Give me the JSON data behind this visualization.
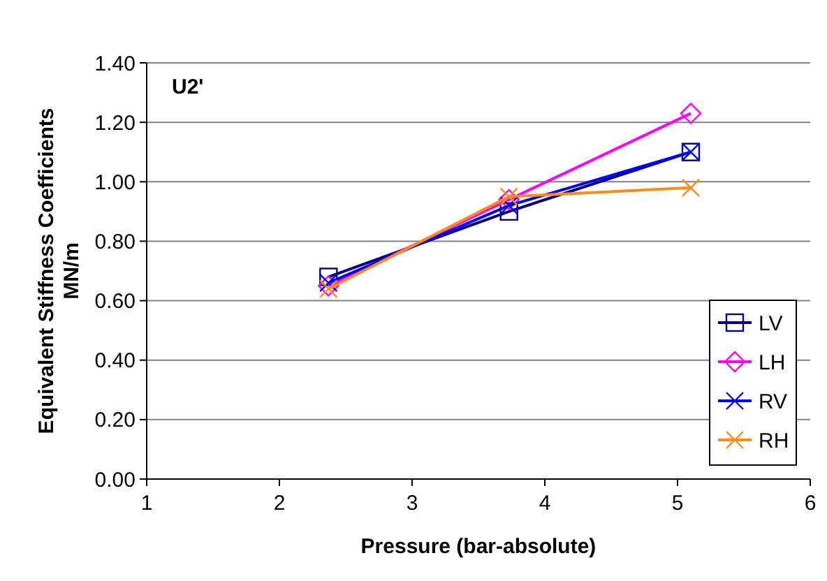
{
  "chart_data": {
    "type": "line",
    "xlabel": "Pressure (bar-absolute)",
    "ylabel": "Equivalent Stiffness Coefficients\nMN/m",
    "annotations": [
      "U2'"
    ],
    "xlim": [
      1,
      6
    ],
    "xticks": [
      1,
      2,
      3,
      4,
      5,
      6
    ],
    "ylim": [
      0,
      1.4
    ],
    "yticks": [
      {
        "value": 0,
        "label": "0.00"
      },
      {
        "value": 0.2,
        "label": "0.20"
      },
      {
        "value": 0.4,
        "label": "0.40"
      },
      {
        "value": 0.6,
        "label": "0.60"
      },
      {
        "value": 0.8,
        "label": "0.80"
      },
      {
        "value": 1,
        "label": "1.00"
      },
      {
        "value": 1.2,
        "label": "1.20"
      },
      {
        "value": 1.4,
        "label": "1.40"
      }
    ],
    "grid": "y",
    "legend": "bottom right",
    "series": [
      {
        "name": "LV",
        "color": "#000080",
        "marker": "square",
        "x": [
          2.37,
          3.73,
          5.1
        ],
        "values": [
          0.68,
          0.9,
          1.1
        ]
      },
      {
        "name": "LH",
        "color": "#ff00ff",
        "marker": "diamond",
        "x": [
          2.37,
          3.73,
          5.1
        ],
        "values": [
          0.65,
          0.94,
          1.23
        ]
      },
      {
        "name": "RV",
        "color": "#0000ff",
        "marker": "cross",
        "x": [
          2.37,
          3.73,
          5.1
        ],
        "values": [
          0.66,
          0.92,
          1.1
        ]
      },
      {
        "name": "RH",
        "color": "#ff8c1a",
        "marker": "cross",
        "x": [
          2.37,
          3.73,
          5.1
        ],
        "values": [
          0.64,
          0.95,
          0.98
        ]
      }
    ]
  }
}
